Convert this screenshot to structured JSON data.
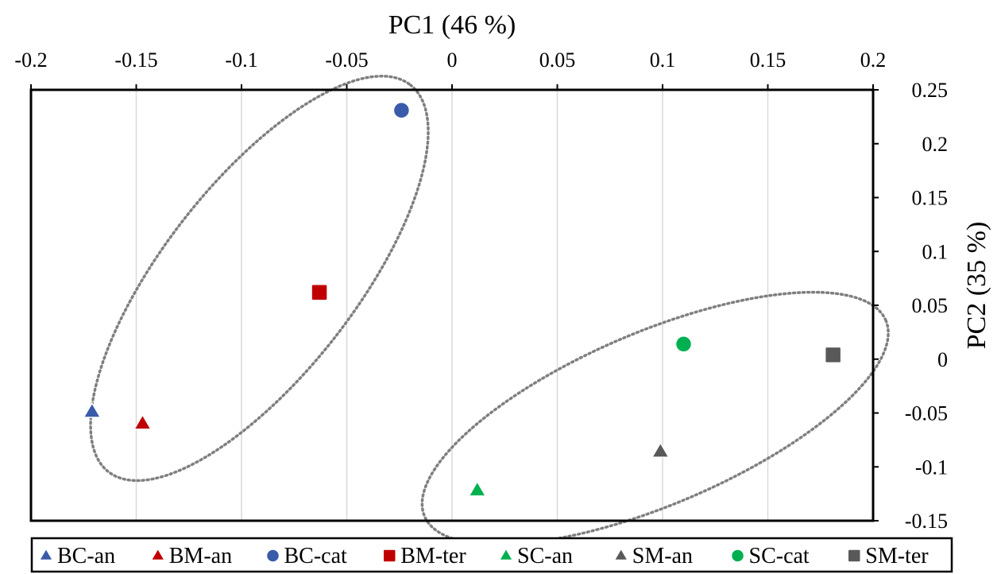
{
  "chart_data": {
    "type": "scatter",
    "xlabel": "PC1 (46 %)",
    "ylabel": "PC2 (35 %)",
    "xlim": [
      -0.2,
      0.2
    ],
    "ylim": [
      -0.15,
      0.25
    ],
    "xticks": [
      "-0.2",
      "-0.15",
      "-0.1",
      "-0.05",
      "0",
      "0.05",
      "0.1",
      "0.15",
      "0.2"
    ],
    "yticks": [
      "0.25",
      "0.2",
      "0.15",
      "0.1",
      "0.05",
      "0",
      "-0.05",
      "-0.1",
      "-0.15"
    ],
    "x_axis_position": "top",
    "y_axis_position": "right",
    "grid": "vertical",
    "legend_position": "bottom",
    "series": [
      {
        "name": "BC-an",
        "x": -0.171,
        "y": -0.049,
        "marker": "triangle",
        "color": "#3a5ba9"
      },
      {
        "name": "BM-an",
        "x": -0.147,
        "y": -0.06,
        "marker": "triangle",
        "color": "#c00000"
      },
      {
        "name": "BC-cat",
        "x": -0.024,
        "y": 0.231,
        "marker": "circle",
        "color": "#3a5ba9"
      },
      {
        "name": "BM-ter",
        "x": -0.063,
        "y": 0.062,
        "marker": "square",
        "color": "#c00000"
      },
      {
        "name": "SC-an",
        "x": 0.012,
        "y": -0.122,
        "marker": "triangle",
        "color": "#00b050"
      },
      {
        "name": "SM-an",
        "x": 0.099,
        "y": -0.086,
        "marker": "triangle",
        "color": "#595959"
      },
      {
        "name": "SC-cat",
        "x": 0.11,
        "y": 0.014,
        "marker": "circle",
        "color": "#00b050"
      },
      {
        "name": "SM-ter",
        "x": 0.181,
        "y": 0.004,
        "marker": "square",
        "color": "#595959"
      }
    ],
    "clusters": [
      {
        "cx": -0.0915,
        "cy": 0.075,
        "rx": 0.1165,
        "ry": 0.0455,
        "angle_deg": -52
      },
      {
        "cx": 0.0965,
        "cy": -0.055,
        "rx": 0.119,
        "ry": 0.041,
        "angle_deg": -23
      }
    ]
  }
}
